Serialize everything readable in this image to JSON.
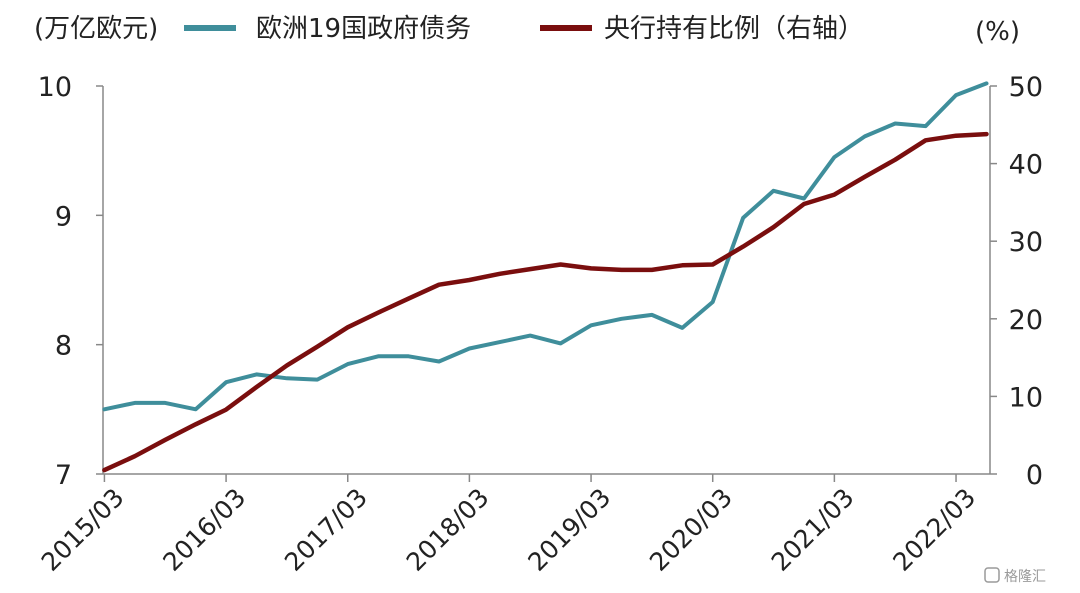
{
  "watermark": "格隆汇",
  "chart_data": {
    "type": "line",
    "left_unit": "(万亿欧元)",
    "right_unit": "(%)",
    "x_ticks": [
      "2015/03",
      "2016/03",
      "2017/03",
      "2018/03",
      "2019/03",
      "2020/03",
      "2021/03",
      "2022/03"
    ],
    "left_axis": {
      "min": 7,
      "max": 10,
      "ticks": [
        7,
        8,
        9,
        10
      ]
    },
    "right_axis": {
      "min": 0,
      "max": 50,
      "ticks": [
        0,
        10,
        20,
        30,
        40,
        50
      ]
    },
    "legend_position": "top",
    "grid": false,
    "series": [
      {
        "name": "欧洲19国政府债务",
        "axis": "left",
        "color": "#3f8e9b",
        "x": [
          "2015/03",
          "2015/06",
          "2015/09",
          "2015/12",
          "2016/03",
          "2016/06",
          "2016/09",
          "2016/12",
          "2017/03",
          "2017/06",
          "2017/09",
          "2017/12",
          "2018/03",
          "2018/06",
          "2018/09",
          "2018/12",
          "2019/03",
          "2019/06",
          "2019/09",
          "2019/12",
          "2020/03",
          "2020/06",
          "2020/09",
          "2020/12",
          "2021/03",
          "2021/06",
          "2021/09",
          "2021/12",
          "2022/03",
          "2022/06"
        ],
        "values": [
          7.5,
          7.55,
          7.55,
          7.5,
          7.71,
          7.77,
          7.74,
          7.73,
          7.85,
          7.91,
          7.91,
          7.87,
          7.97,
          8.02,
          8.07,
          8.01,
          8.15,
          8.2,
          8.23,
          8.13,
          8.33,
          8.98,
          9.19,
          9.13,
          9.45,
          9.61,
          9.71,
          9.69,
          9.93,
          10.02
        ]
      },
      {
        "name": "央行持有比例（右轴）",
        "axis": "right",
        "color": "#7a0e0e",
        "x": [
          "2015/03",
          "2015/06",
          "2015/09",
          "2015/12",
          "2016/03",
          "2016/06",
          "2016/09",
          "2016/12",
          "2017/03",
          "2017/06",
          "2017/09",
          "2017/12",
          "2018/03",
          "2018/06",
          "2018/09",
          "2018/12",
          "2019/03",
          "2019/06",
          "2019/09",
          "2019/12",
          "2020/03",
          "2020/06",
          "2020/09",
          "2020/12",
          "2021/03",
          "2021/06",
          "2021/09",
          "2021/12",
          "2022/03",
          "2022/06"
        ],
        "values": [
          0.5,
          2.3,
          4.4,
          6.4,
          8.3,
          11.2,
          14.0,
          16.4,
          18.9,
          20.8,
          22.6,
          24.4,
          25.0,
          25.8,
          26.4,
          27.0,
          26.5,
          26.3,
          26.3,
          26.9,
          27.0,
          29.3,
          31.8,
          34.8,
          36.0,
          38.3,
          40.5,
          43.0,
          43.6,
          43.8
        ]
      }
    ]
  }
}
